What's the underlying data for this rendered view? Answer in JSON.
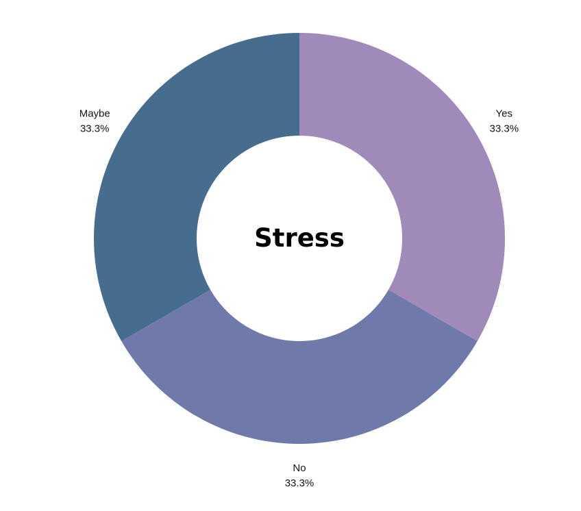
{
  "chart_data": {
    "type": "pie",
    "subtype": "donut",
    "title": "Stress",
    "categories": [
      "Yes",
      "No",
      "Maybe"
    ],
    "values": [
      33.3,
      33.3,
      33.3
    ],
    "percent_labels": [
      "33.3%",
      "33.3%",
      "33.3%"
    ],
    "colors": [
      "#a08aba",
      "#6f7aaa",
      "#476d8e"
    ],
    "legend": "none"
  }
}
